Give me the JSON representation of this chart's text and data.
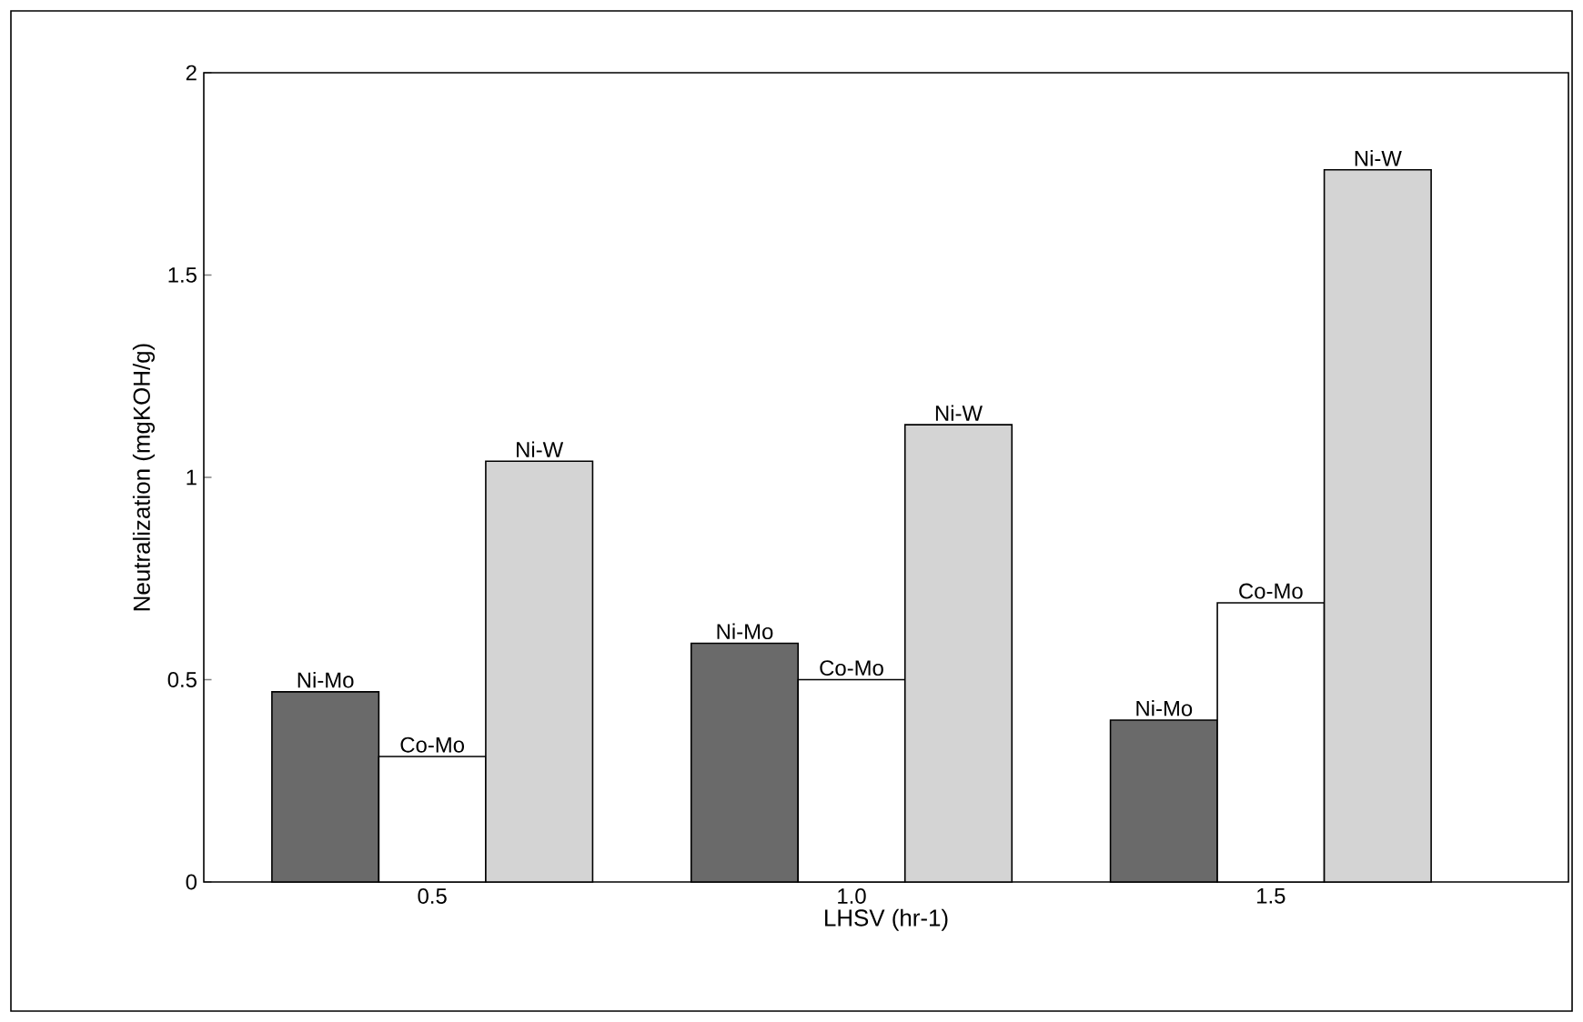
{
  "chart_data": {
    "type": "bar",
    "xlabel": "LHSV  (hr-1)",
    "ylabel": "Neutralization (mgKOH/g)",
    "categories": [
      "0.5",
      "1.0",
      "1.5"
    ],
    "series": [
      {
        "name": "Ni-Mo",
        "color": "#6a6a6a",
        "values": [
          0.47,
          0.59,
          0.4
        ]
      },
      {
        "name": "Co-Mo",
        "color": "#ffffff",
        "values": [
          0.31,
          0.5,
          0.69
        ]
      },
      {
        "name": "Ni-W",
        "color": "#d4d4d4",
        "values": [
          1.04,
          1.13,
          1.76
        ]
      }
    ],
    "ylim": [
      0,
      2
    ],
    "yticks": [
      0,
      0.5,
      1,
      1.5,
      2
    ],
    "grid": false
  }
}
